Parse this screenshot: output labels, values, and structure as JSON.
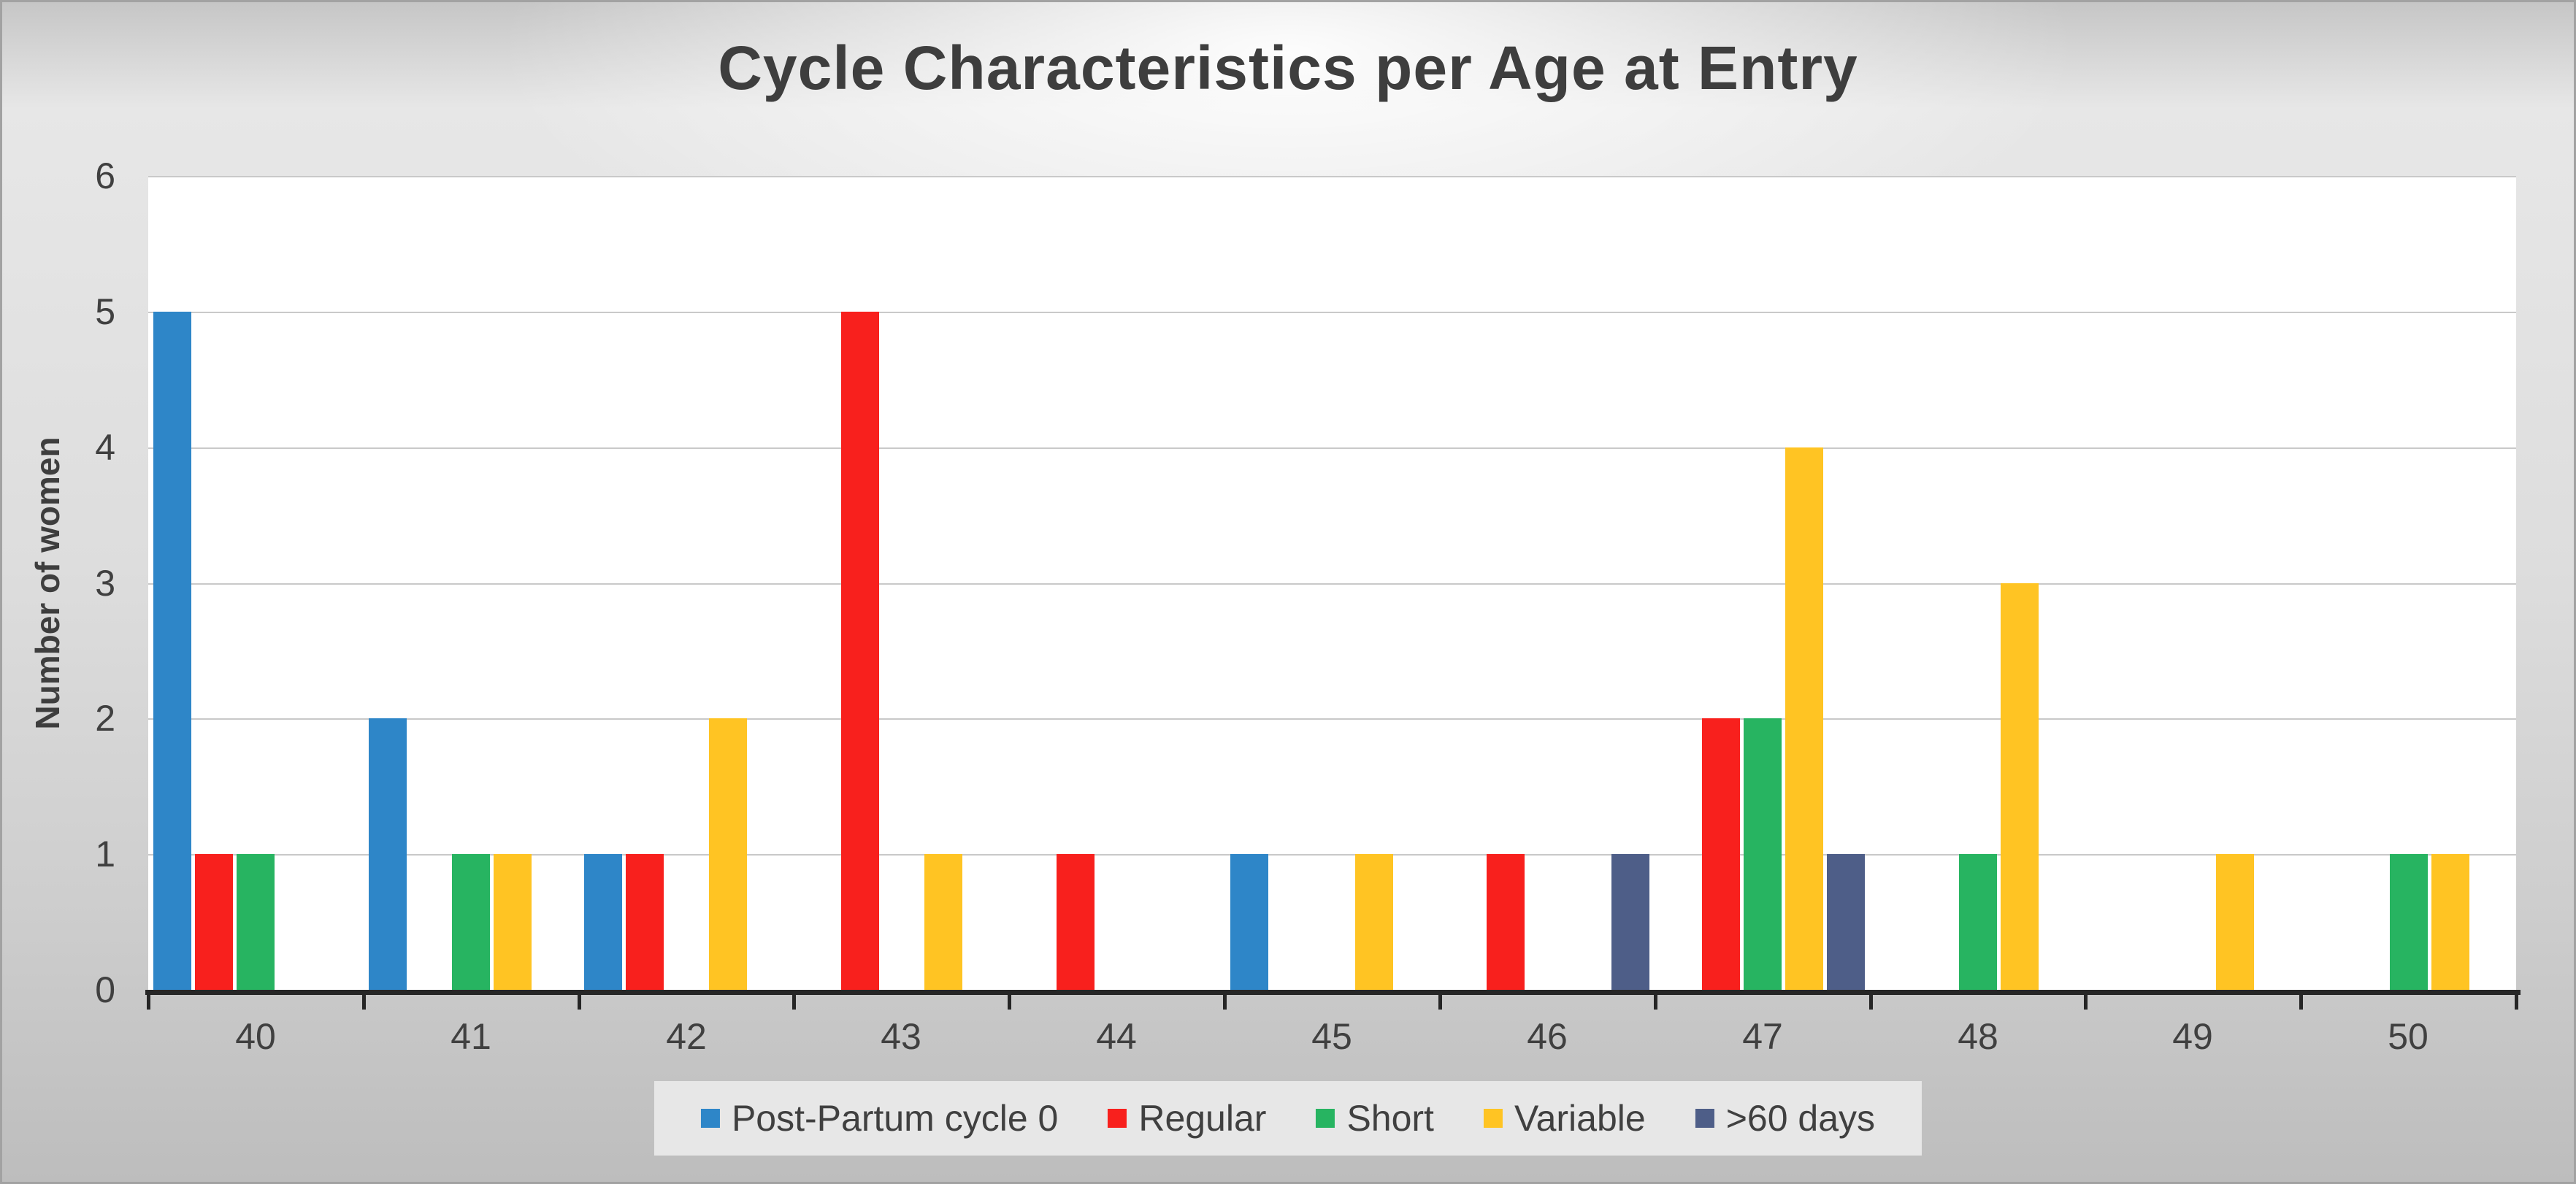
{
  "title": "Cycle Characteristics per Age at Entry",
  "chart_data": {
    "type": "bar",
    "title": "Cycle Characteristics per Age at Entry",
    "xlabel": "",
    "ylabel": "Number of women",
    "ylim": [
      0,
      6
    ],
    "y_ticks": [
      "0",
      "1",
      "2",
      "3",
      "4",
      "5",
      "6"
    ],
    "grid": true,
    "legend_position": "bottom",
    "categories": [
      "40",
      "41",
      "42",
      "43",
      "44",
      "45",
      "46",
      "47",
      "48",
      "49",
      "50"
    ],
    "series": [
      {
        "name": "Post-Partum cycle 0",
        "color": "#2E86C8",
        "values": [
          5,
          2,
          1,
          0,
          0,
          1,
          0,
          0,
          0,
          0,
          0
        ]
      },
      {
        "name": "Regular",
        "color": "#F8201D",
        "values": [
          1,
          0,
          1,
          5,
          1,
          0,
          1,
          2,
          0,
          0,
          0
        ]
      },
      {
        "name": "Short",
        "color": "#27B461",
        "values": [
          1,
          1,
          0,
          0,
          0,
          0,
          0,
          2,
          1,
          0,
          1
        ]
      },
      {
        "name": "Variable",
        "color": "#FFC423",
        "values": [
          0,
          1,
          2,
          1,
          0,
          1,
          0,
          4,
          3,
          1,
          1
        ]
      },
      {
        "name": ">60 days",
        "color": "#4E5E88",
        "values": [
          0,
          0,
          0,
          0,
          0,
          0,
          1,
          1,
          0,
          0,
          0
        ]
      }
    ],
    "colors": {
      "text": "#404040",
      "axis": "#262626",
      "gridline": "#c9c9c9",
      "plot_background": "#ffffff"
    }
  }
}
